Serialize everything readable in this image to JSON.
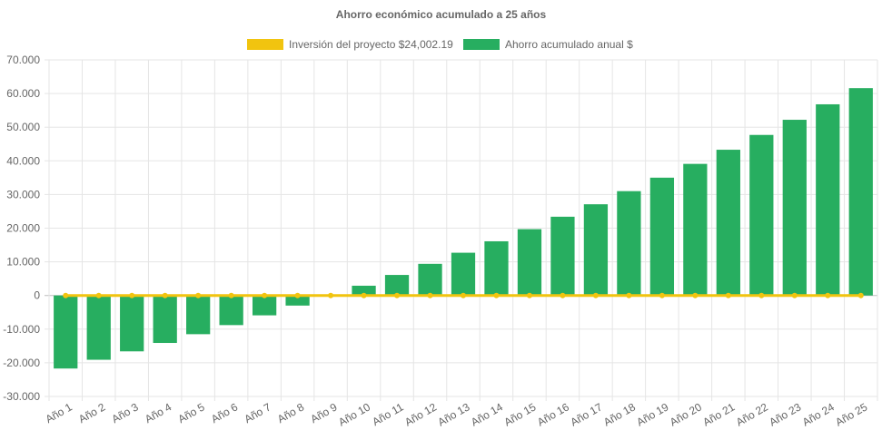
{
  "chart_data": {
    "type": "bar",
    "title": "Ahorro económico acumulado a 25 años",
    "categories": [
      "Año 1",
      "Año 2",
      "Año 3",
      "Año 4",
      "Año 5",
      "Año 6",
      "Año 7",
      "Año 8",
      "Año 9",
      "Año 10",
      "Año 11",
      "Año 12",
      "Año 13",
      "Año 14",
      "Año 15",
      "Año 16",
      "Año 17",
      "Año 18",
      "Año 19",
      "Año 20",
      "Año 21",
      "Año 22",
      "Año 23",
      "Año 24",
      "Año 25"
    ],
    "series": [
      {
        "name": "Inversión del proyecto $24,002.19",
        "type": "line",
        "color": "#f1c40f",
        "values": [
          0,
          0,
          0,
          0,
          0,
          0,
          0,
          0,
          0,
          0,
          0,
          0,
          0,
          0,
          0,
          0,
          0,
          0,
          0,
          0,
          0,
          0,
          0,
          0,
          0
        ]
      },
      {
        "name": "Ahorro acumulado anual $",
        "type": "bar",
        "color": "#27ae60",
        "values": [
          -21700,
          -19100,
          -16600,
          -14100,
          -11500,
          -8800,
          -5900,
          -3000,
          0,
          2900,
          6100,
          9400,
          12700,
          16100,
          19700,
          23400,
          27100,
          31000,
          35000,
          39100,
          43300,
          47700,
          52200,
          56800,
          61600
        ]
      }
    ],
    "ylim": [
      -30000,
      70000
    ],
    "yticks": [
      "70.000",
      "60.000",
      "50.000",
      "40.000",
      "30.000",
      "20.000",
      "10.000",
      "0",
      "-10.000",
      "-20.000",
      "-30.000"
    ],
    "grid": true,
    "legend": "top-center"
  }
}
